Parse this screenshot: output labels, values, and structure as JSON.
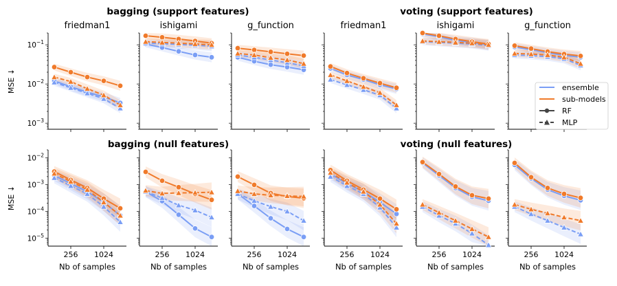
{
  "chart_data": {
    "type": "line",
    "x": [
      128,
      256,
      512,
      1024,
      2048
    ],
    "xticks": [
      {
        "value": 256,
        "label": "256"
      },
      {
        "value": 1024,
        "label": "1024"
      }
    ],
    "xlabel": "Nb of samples",
    "ylabel": "MSE ↓",
    "yscale": "log",
    "group_titles": {
      "bagging_support": "bagging (support features)",
      "voting_support": "voting (support features)",
      "bagging_null": "bagging (null features)",
      "voting_null": "voting (null features)"
    },
    "panel_titles": [
      "friedman1",
      "ishigami",
      "g_function",
      "friedman1",
      "ishigami",
      "g_function"
    ],
    "rows": [
      {
        "ylim": [
          0.0007,
          0.2
        ],
        "yticks": [
          {
            "value": 0.001,
            "base": "10",
            "exp": "−3"
          },
          {
            "value": 0.01,
            "base": "10",
            "exp": "−2"
          },
          {
            "value": 0.1,
            "base": "10",
            "exp": "−1"
          }
        ]
      },
      {
        "ylim": [
          5e-06,
          0.02
        ],
        "yticks": [
          {
            "value": 1e-05,
            "base": "10",
            "exp": "−5"
          },
          {
            "value": 0.0001,
            "base": "10",
            "exp": "−4"
          },
          {
            "value": 0.001,
            "base": "10",
            "exp": "−3"
          },
          {
            "value": 0.01,
            "base": "10",
            "exp": "−2"
          }
        ]
      }
    ],
    "legend": {
      "placement": "right",
      "entries": [
        {
          "label": "ensemble",
          "kind": "color",
          "color": "#7a9ef5"
        },
        {
          "label": "sub-models",
          "kind": "color",
          "color": "#f07a2a"
        },
        {
          "label": "RF",
          "kind": "style",
          "style": "solid",
          "marker": "circle"
        },
        {
          "label": "MLP",
          "kind": "style",
          "style": "dashed",
          "marker": "triangle"
        }
      ]
    },
    "colors": {
      "ensemble": "#7a9ef5",
      "sub_models": "#f07a2a",
      "marker_edge": "#ffffff"
    },
    "panels": [
      {
        "row": 0,
        "col": 0,
        "series": [
          {
            "model": "ensemble",
            "learner": "RF",
            "values": [
              0.012,
              0.0085,
              0.0062,
              0.0047,
              0.0033
            ]
          },
          {
            "model": "ensemble",
            "learner": "MLP",
            "values": [
              0.011,
              0.008,
              0.0058,
              0.0042,
              0.0024
            ]
          },
          {
            "model": "sub-models",
            "learner": "RF",
            "values": [
              0.027,
              0.02,
              0.015,
              0.012,
              0.009
            ]
          },
          {
            "model": "sub-models",
            "learner": "MLP",
            "values": [
              0.015,
              0.0115,
              0.0076,
              0.0052,
              0.0029
            ]
          }
        ]
      },
      {
        "row": 0,
        "col": 1,
        "series": [
          {
            "model": "ensemble",
            "learner": "RF",
            "values": [
              0.105,
              0.085,
              0.068,
              0.055,
              0.048
            ]
          },
          {
            "model": "ensemble",
            "learner": "MLP",
            "values": [
              0.11,
              0.107,
              0.102,
              0.098,
              0.092
            ]
          },
          {
            "model": "sub-models",
            "learner": "RF",
            "values": [
              0.17,
              0.155,
              0.14,
              0.125,
              0.11
            ]
          },
          {
            "model": "sub-models",
            "learner": "MLP",
            "values": [
              0.12,
              0.115,
              0.11,
              0.105,
              0.1
            ]
          }
        ]
      },
      {
        "row": 0,
        "col": 2,
        "series": [
          {
            "model": "ensemble",
            "learner": "RF",
            "values": [
              0.048,
              0.038,
              0.031,
              0.027,
              0.023
            ]
          },
          {
            "model": "ensemble",
            "learner": "MLP",
            "values": [
              0.055,
              0.048,
              0.041,
              0.035,
              0.029
            ]
          },
          {
            "model": "sub-models",
            "learner": "RF",
            "values": [
              0.082,
              0.074,
              0.066,
              0.059,
              0.053
            ]
          },
          {
            "model": "sub-models",
            "learner": "MLP",
            "values": [
              0.06,
              0.055,
              0.047,
              0.041,
              0.033
            ]
          }
        ]
      },
      {
        "row": 0,
        "col": 3,
        "series": [
          {
            "model": "ensemble",
            "learner": "RF",
            "values": [
              0.025,
              0.017,
              0.013,
              0.0095,
              0.0075
            ]
          },
          {
            "model": "ensemble",
            "learner": "MLP",
            "values": [
              0.013,
              0.0095,
              0.0071,
              0.0052,
              0.0024
            ]
          },
          {
            "model": "sub-models",
            "learner": "RF",
            "values": [
              0.028,
              0.019,
              0.014,
              0.0105,
              0.008
            ]
          },
          {
            "model": "sub-models",
            "learner": "MLP",
            "values": [
              0.017,
              0.012,
              0.0085,
              0.006,
              0.0029
            ]
          }
        ]
      },
      {
        "row": 0,
        "col": 4,
        "series": [
          {
            "model": "ensemble",
            "learner": "RF",
            "values": [
              0.19,
              0.16,
              0.13,
              0.115,
              0.1
            ]
          },
          {
            "model": "ensemble",
            "learner": "MLP",
            "values": [
              0.12,
              0.115,
              0.11,
              0.105,
              0.095
            ]
          },
          {
            "model": "sub-models",
            "learner": "RF",
            "values": [
              0.2,
              0.17,
              0.14,
              0.12,
              0.105
            ]
          },
          {
            "model": "sub-models",
            "learner": "MLP",
            "values": [
              0.125,
              0.12,
              0.115,
              0.11,
              0.1
            ]
          }
        ]
      },
      {
        "row": 0,
        "col": 5,
        "series": [
          {
            "model": "ensemble",
            "learner": "RF",
            "values": [
              0.088,
              0.075,
              0.063,
              0.054,
              0.048
            ]
          },
          {
            "model": "ensemble",
            "learner": "MLP",
            "values": [
              0.055,
              0.053,
              0.05,
              0.044,
              0.03
            ]
          },
          {
            "model": "sub-models",
            "learner": "RF",
            "values": [
              0.095,
              0.08,
              0.067,
              0.058,
              0.052
            ]
          },
          {
            "model": "sub-models",
            "learner": "MLP",
            "values": [
              0.06,
              0.058,
              0.055,
              0.048,
              0.033
            ]
          }
        ]
      },
      {
        "row": 1,
        "col": 0,
        "series": [
          {
            "model": "ensemble",
            "learner": "RF",
            "values": [
              0.0022,
              0.0011,
              0.00055,
              0.00022,
              7e-05
            ]
          },
          {
            "model": "ensemble",
            "learner": "MLP",
            "values": [
              0.0018,
              0.0009,
              0.00045,
              0.00015,
              4e-05
            ]
          },
          {
            "model": "sub-models",
            "learner": "RF",
            "values": [
              0.0031,
              0.0015,
              0.00075,
              0.0003,
              0.00013
            ]
          },
          {
            "model": "sub-models",
            "learner": "MLP",
            "values": [
              0.0026,
              0.0013,
              0.00065,
              0.00022,
              7e-05
            ]
          }
        ]
      },
      {
        "row": 1,
        "col": 1,
        "series": [
          {
            "model": "ensemble",
            "learner": "RF",
            "values": [
              0.00055,
              0.00024,
              7.5e-05,
              2.3e-05,
              1.1e-05
            ]
          },
          {
            "model": "ensemble",
            "learner": "MLP",
            "values": [
              0.00055,
              0.00032,
              0.00017,
              0.00011,
              6e-05
            ]
          },
          {
            "model": "sub-models",
            "learner": "RF",
            "values": [
              0.003,
              0.0014,
              0.0008,
              0.00045,
              0.00027
            ]
          },
          {
            "model": "sub-models",
            "learner": "MLP",
            "values": [
              0.0006,
              0.00047,
              0.00049,
              0.0005,
              0.00052
            ]
          }
        ]
      },
      {
        "row": 1,
        "col": 2,
        "series": [
          {
            "model": "ensemble",
            "learner": "RF",
            "values": [
              0.00045,
              0.00016,
              5.5e-05,
              2.2e-05,
              1.1e-05
            ]
          },
          {
            "model": "ensemble",
            "learner": "MLP",
            "values": [
              0.00045,
              0.00025,
              0.00015,
              0.0001,
              4.5e-05
            ]
          },
          {
            "model": "sub-models",
            "learner": "RF",
            "values": [
              0.002,
              0.00098,
              0.00048,
              0.00036,
              0.00031
            ]
          },
          {
            "model": "sub-models",
            "learner": "MLP",
            "values": [
              0.00058,
              0.00045,
              0.0004,
              0.00038,
              0.00036
            ]
          }
        ]
      },
      {
        "row": 1,
        "col": 3,
        "series": [
          {
            "model": "ensemble",
            "learner": "RF",
            "values": [
              0.0025,
              0.0011,
              0.00055,
              0.00022,
              8e-05
            ]
          },
          {
            "model": "ensemble",
            "learner": "MLP",
            "values": [
              0.002,
              0.0009,
              0.00045,
              0.00014,
              2.5e-05
            ]
          },
          {
            "model": "sub-models",
            "learner": "RF",
            "values": [
              0.0035,
              0.0014,
              0.00065,
              0.0003,
              0.00012
            ]
          },
          {
            "model": "sub-models",
            "learner": "MLP",
            "values": [
              0.0028,
              0.0012,
              0.00055,
              0.00018,
              3.5e-05
            ]
          }
        ]
      },
      {
        "row": 1,
        "col": 4,
        "series": [
          {
            "model": "ensemble",
            "learner": "RF",
            "values": [
              0.0065,
              0.0022,
              0.00075,
              0.00035,
              0.00025
            ]
          },
          {
            "model": "ensemble",
            "learner": "MLP",
            "values": [
              0.00015,
              7e-05,
              3.5e-05,
              1.5e-05,
              5.5e-06
            ]
          },
          {
            "model": "sub-models",
            "learner": "RF",
            "values": [
              0.007,
              0.0025,
              0.00085,
              0.0004,
              0.0003
            ]
          },
          {
            "model": "sub-models",
            "learner": "MLP",
            "values": [
              0.00018,
              9e-05,
              4.5e-05,
              2.2e-05,
              1.1e-05
            ]
          }
        ]
      },
      {
        "row": 1,
        "col": 5,
        "series": [
          {
            "model": "ensemble",
            "learner": "RF",
            "values": [
              0.0055,
              0.0017,
              0.00065,
              0.00038,
              0.00026
            ]
          },
          {
            "model": "ensemble",
            "learner": "MLP",
            "values": [
              0.00015,
              8e-05,
              4.5e-05,
              2.5e-05,
              1.4e-05
            ]
          },
          {
            "model": "sub-models",
            "learner": "RF",
            "values": [
              0.0065,
              0.0019,
              0.00075,
              0.00045,
              0.00032
            ]
          },
          {
            "model": "sub-models",
            "learner": "MLP",
            "values": [
              0.00018,
              0.00012,
              8.5e-05,
              6e-05,
              4.5e-05
            ]
          }
        ]
      }
    ]
  }
}
